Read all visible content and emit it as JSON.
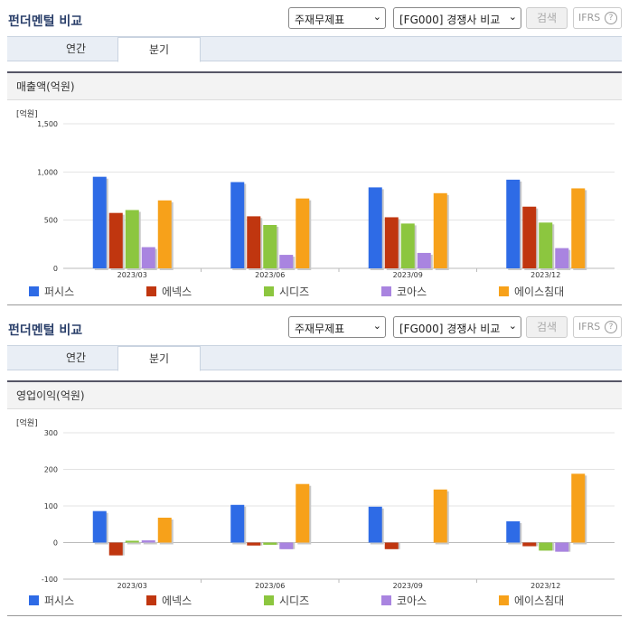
{
  "top": {
    "title": "펀더멘털 비교",
    "select1": "주재무제표",
    "select2": "[FG000] 경쟁사 비교",
    "search_label": "검색",
    "ifrs_label": "IFRS",
    "tabs": [
      "연간",
      "분기"
    ]
  },
  "bottom": {
    "title": "펀더멘털 비교",
    "select1": "주재무제표",
    "select2": "[FG000] 경쟁사 비교",
    "search_label": "검색",
    "ifrs_label": "IFRS",
    "tabs": [
      "연간",
      "분기"
    ]
  },
  "colors": {
    "퍼시스": "#2e6be6",
    "에넥스": "#c0360f",
    "시디즈": "#8cc63f",
    "코아스": "#a984e0",
    "에이스침대": "#f7a11a"
  },
  "chart_data": [
    {
      "type": "bar",
      "title": "매출액(억원)",
      "unit": "[억원]",
      "categories": [
        "2023/03",
        "2023/06",
        "2023/09",
        "2023/12"
      ],
      "ylim": [
        0,
        1500
      ],
      "yticks": [
        0,
        500,
        1000,
        1500
      ],
      "ytick_labels": [
        "0",
        "500",
        "1,000",
        "1,500"
      ],
      "legend_position": "bottom",
      "series": [
        {
          "name": "퍼시스",
          "values": [
            950,
            895,
            840,
            920
          ]
        },
        {
          "name": "에넥스",
          "values": [
            575,
            540,
            530,
            640
          ]
        },
        {
          "name": "시디즈",
          "values": [
            605,
            450,
            465,
            475
          ]
        },
        {
          "name": "코아스",
          "values": [
            220,
            140,
            160,
            210
          ]
        },
        {
          "name": "에이스침대",
          "values": [
            705,
            725,
            780,
            830
          ]
        }
      ]
    },
    {
      "type": "bar",
      "title": "영업이익(억원)",
      "unit": "[억원]",
      "categories": [
        "2023/03",
        "2023/06",
        "2023/09",
        "2023/12"
      ],
      "ylim": [
        -100,
        300
      ],
      "yticks": [
        -100,
        0,
        100,
        200,
        300
      ],
      "ytick_labels": [
        "-100",
        "0",
        "100",
        "200",
        "300"
      ],
      "legend_position": "bottom",
      "series": [
        {
          "name": "퍼시스",
          "values": [
            86,
            103,
            98,
            58
          ]
        },
        {
          "name": "에넥스",
          "values": [
            -35,
            -8,
            -18,
            -10
          ]
        },
        {
          "name": "시디즈",
          "values": [
            5,
            -6,
            0,
            -22
          ]
        },
        {
          "name": "코아스",
          "values": [
            6,
            -18,
            0,
            -25
          ]
        },
        {
          "name": "에이스침대",
          "values": [
            68,
            160,
            145,
            188
          ]
        }
      ]
    }
  ]
}
